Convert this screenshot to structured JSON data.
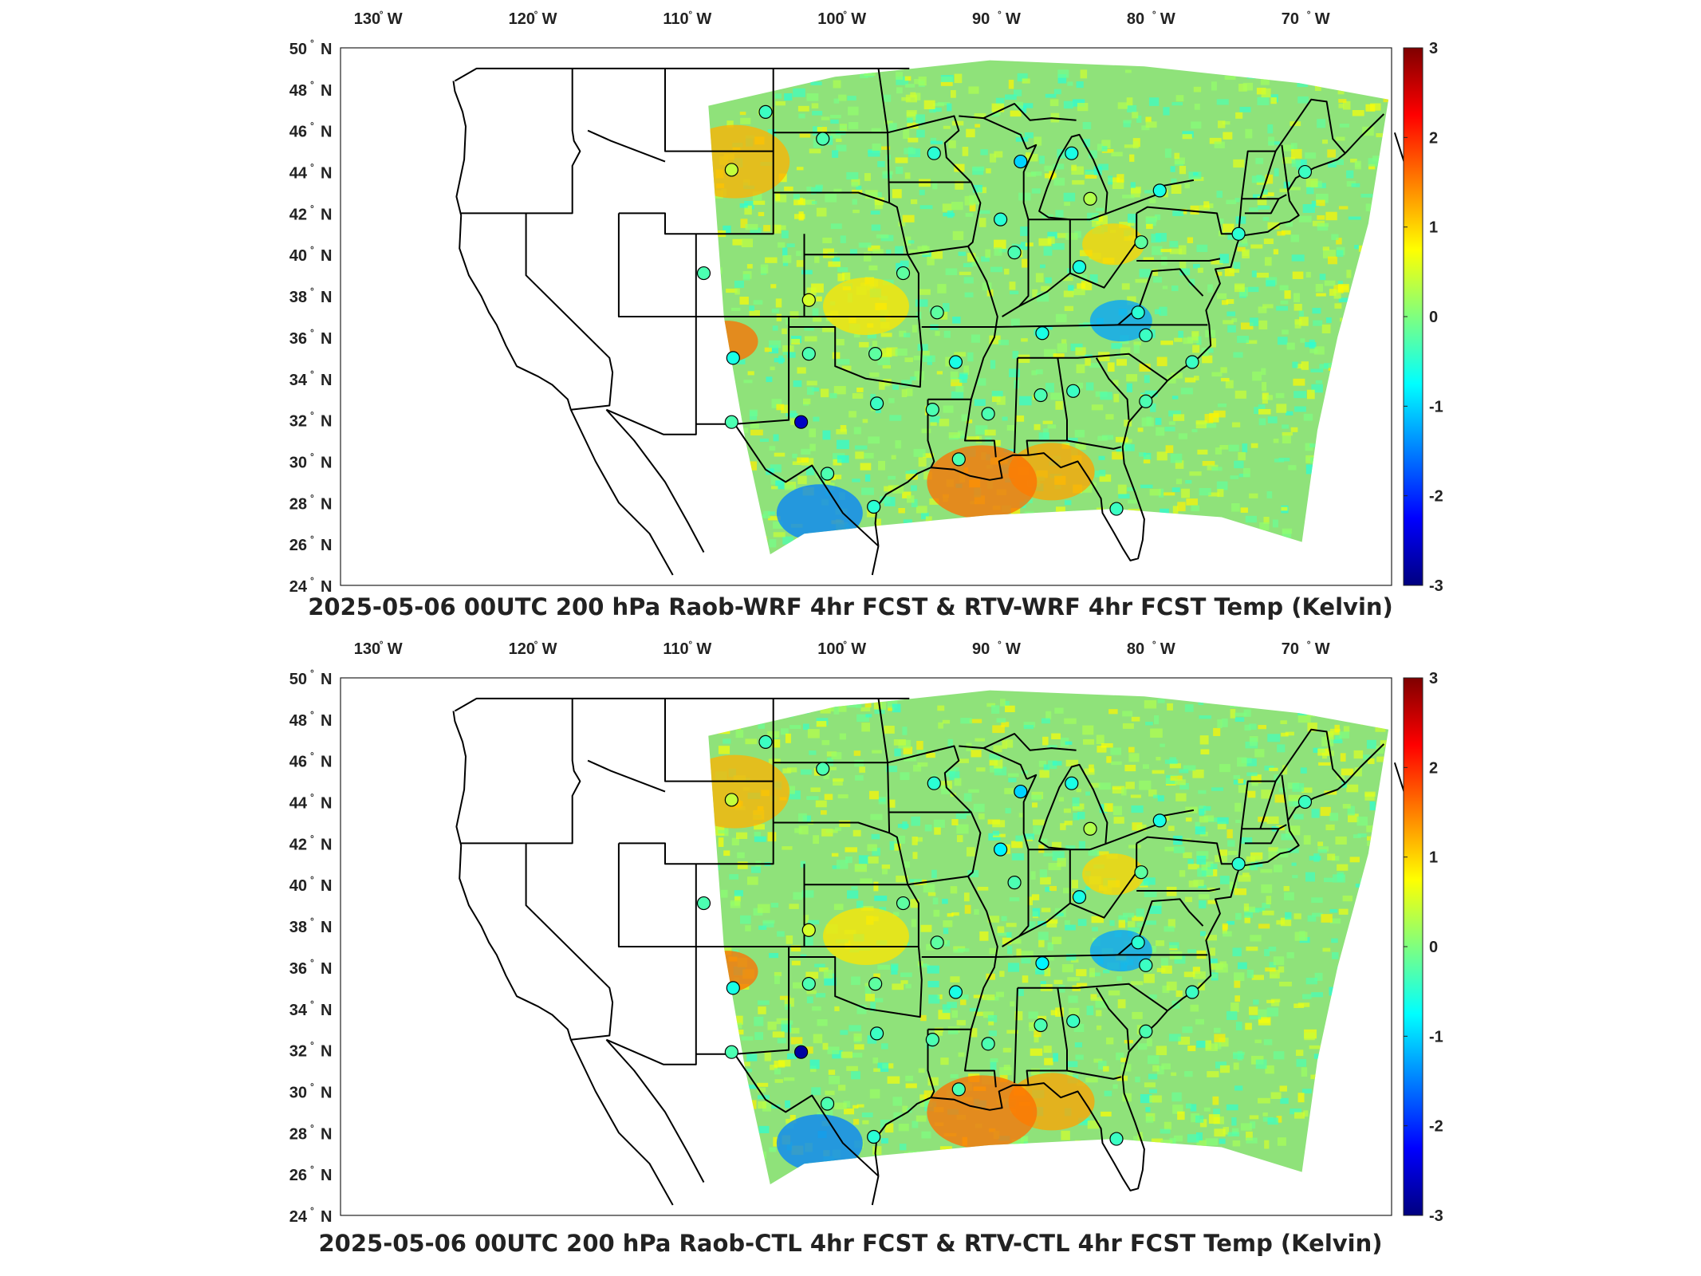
{
  "panels": [
    {
      "title": "2025-05-06 00UTC 200 hPa Raob-WRF 4hr FCST & RTV-WRF 4hr FCST Temp (Kelvin)",
      "stations": [
        {
          "lon": -104.5,
          "lat": 46.9,
          "value": -0.4
        },
        {
          "lon": -100.8,
          "lat": 45.6,
          "value": -0.3
        },
        {
          "lon": -93.6,
          "lat": 44.9,
          "value": -0.5
        },
        {
          "lon": -88.0,
          "lat": 44.5,
          "value": -1.0
        },
        {
          "lon": -84.7,
          "lat": 44.9,
          "value": -0.6
        },
        {
          "lon": -106.7,
          "lat": 44.1,
          "value": 0.4
        },
        {
          "lon": -83.5,
          "lat": 42.7,
          "value": 0.3
        },
        {
          "lon": -79.0,
          "lat": 43.1,
          "value": -0.6
        },
        {
          "lon": -69.6,
          "lat": 44.0,
          "value": -0.4
        },
        {
          "lon": -89.3,
          "lat": 41.7,
          "value": -0.5
        },
        {
          "lon": -73.9,
          "lat": 41.0,
          "value": -0.5
        },
        {
          "lon": -80.2,
          "lat": 40.6,
          "value": -0.2
        },
        {
          "lon": -88.4,
          "lat": 40.1,
          "value": -0.3
        },
        {
          "lon": -84.2,
          "lat": 39.4,
          "value": -0.6
        },
        {
          "lon": -95.6,
          "lat": 39.1,
          "value": -0.2
        },
        {
          "lon": -101.7,
          "lat": 37.8,
          "value": 0.5
        },
        {
          "lon": -108.5,
          "lat": 39.1,
          "value": -0.3
        },
        {
          "lon": -93.4,
          "lat": 37.2,
          "value": -0.2
        },
        {
          "lon": -80.4,
          "lat": 37.2,
          "value": -0.5
        },
        {
          "lon": -86.6,
          "lat": 36.2,
          "value": -0.6
        },
        {
          "lon": -79.9,
          "lat": 36.1,
          "value": -0.4
        },
        {
          "lon": -106.6,
          "lat": 35.0,
          "value": -0.6
        },
        {
          "lon": -101.7,
          "lat": 35.2,
          "value": -0.3
        },
        {
          "lon": -97.4,
          "lat": 35.2,
          "value": -0.2
        },
        {
          "lon": -92.2,
          "lat": 34.8,
          "value": -0.6
        },
        {
          "lon": -76.9,
          "lat": 34.8,
          "value": -0.4
        },
        {
          "lon": -84.6,
          "lat": 33.4,
          "value": -0.4
        },
        {
          "lon": -86.7,
          "lat": 33.2,
          "value": -0.3
        },
        {
          "lon": -97.3,
          "lat": 32.8,
          "value": -0.4
        },
        {
          "lon": -90.1,
          "lat": 32.3,
          "value": -0.3
        },
        {
          "lon": -93.7,
          "lat": 32.5,
          "value": -0.3
        },
        {
          "lon": -79.9,
          "lat": 32.9,
          "value": -0.3
        },
        {
          "lon": -106.7,
          "lat": 31.9,
          "value": -0.3
        },
        {
          "lon": -102.2,
          "lat": 31.9,
          "value": -2.6
        },
        {
          "lon": -100.5,
          "lat": 29.4,
          "value": -0.3
        },
        {
          "lon": -92.0,
          "lat": 30.1,
          "value": -0.3
        },
        {
          "lon": -97.5,
          "lat": 27.8,
          "value": -0.5
        },
        {
          "lon": -81.8,
          "lat": 27.7,
          "value": -0.4
        }
      ]
    },
    {
      "title": "2025-05-06 00UTC 200 hPa Raob-CTL 4hr FCST & RTV-CTL 4hr FCST Temp (Kelvin)",
      "stations": [
        {
          "lon": -104.5,
          "lat": 46.9,
          "value": -0.4
        },
        {
          "lon": -100.8,
          "lat": 45.6,
          "value": -0.3
        },
        {
          "lon": -93.6,
          "lat": 44.9,
          "value": -0.5
        },
        {
          "lon": -88.0,
          "lat": 44.5,
          "value": -1.0
        },
        {
          "lon": -84.7,
          "lat": 44.9,
          "value": -0.6
        },
        {
          "lon": -106.7,
          "lat": 44.1,
          "value": 0.4
        },
        {
          "lon": -83.5,
          "lat": 42.7,
          "value": 0.3
        },
        {
          "lon": -79.0,
          "lat": 43.1,
          "value": -0.6
        },
        {
          "lon": -69.6,
          "lat": 44.0,
          "value": -0.4
        },
        {
          "lon": -89.3,
          "lat": 41.7,
          "value": -0.8
        },
        {
          "lon": -73.9,
          "lat": 41.0,
          "value": -0.5
        },
        {
          "lon": -80.2,
          "lat": 40.6,
          "value": -0.2
        },
        {
          "lon": -88.4,
          "lat": 40.1,
          "value": -0.3
        },
        {
          "lon": -84.2,
          "lat": 39.4,
          "value": -0.6
        },
        {
          "lon": -95.6,
          "lat": 39.1,
          "value": -0.2
        },
        {
          "lon": -101.7,
          "lat": 37.8,
          "value": 0.5
        },
        {
          "lon": -108.5,
          "lat": 39.1,
          "value": -0.3
        },
        {
          "lon": -93.4,
          "lat": 37.2,
          "value": -0.2
        },
        {
          "lon": -80.4,
          "lat": 37.2,
          "value": -0.5
        },
        {
          "lon": -86.6,
          "lat": 36.2,
          "value": -0.8
        },
        {
          "lon": -79.9,
          "lat": 36.1,
          "value": -0.4
        },
        {
          "lon": -106.6,
          "lat": 35.0,
          "value": -0.6
        },
        {
          "lon": -101.7,
          "lat": 35.2,
          "value": -0.3
        },
        {
          "lon": -97.4,
          "lat": 35.2,
          "value": -0.2
        },
        {
          "lon": -92.2,
          "lat": 34.8,
          "value": -0.6
        },
        {
          "lon": -76.9,
          "lat": 34.8,
          "value": -0.4
        },
        {
          "lon": -84.6,
          "lat": 33.4,
          "value": -0.4
        },
        {
          "lon": -86.7,
          "lat": 33.2,
          "value": -0.3
        },
        {
          "lon": -97.3,
          "lat": 32.8,
          "value": -0.4
        },
        {
          "lon": -90.1,
          "lat": 32.3,
          "value": -0.3
        },
        {
          "lon": -93.7,
          "lat": 32.5,
          "value": -0.3
        },
        {
          "lon": -79.9,
          "lat": 32.9,
          "value": -0.3
        },
        {
          "lon": -106.7,
          "lat": 31.9,
          "value": -0.3
        },
        {
          "lon": -102.2,
          "lat": 31.9,
          "value": -2.8
        },
        {
          "lon": -100.5,
          "lat": 29.4,
          "value": -0.3
        },
        {
          "lon": -92.0,
          "lat": 30.1,
          "value": -0.3
        },
        {
          "lon": -97.5,
          "lat": 27.8,
          "value": -0.5
        },
        {
          "lon": -81.8,
          "lat": 27.7,
          "value": -0.4
        }
      ]
    }
  ],
  "axes": {
    "lon_ticks": [
      {
        "value": -130,
        "label": "130",
        "dir": "W"
      },
      {
        "value": -120,
        "label": "120",
        "dir": "W"
      },
      {
        "value": -110,
        "label": "110",
        "dir": "W"
      },
      {
        "value": -100,
        "label": "100",
        "dir": "W"
      },
      {
        "value": -90,
        "label": "90",
        "dir": "W"
      },
      {
        "value": -80,
        "label": "80",
        "dir": "W"
      },
      {
        "value": -70,
        "label": "70",
        "dir": "W"
      }
    ],
    "lat_ticks": [
      {
        "value": 50,
        "label": "50",
        "dir": "N"
      },
      {
        "value": 48,
        "label": "48",
        "dir": "N"
      },
      {
        "value": 46,
        "label": "46",
        "dir": "N"
      },
      {
        "value": 44,
        "label": "44",
        "dir": "N"
      },
      {
        "value": 42,
        "label": "42",
        "dir": "N"
      },
      {
        "value": 40,
        "label": "40",
        "dir": "N"
      },
      {
        "value": 38,
        "label": "38",
        "dir": "N"
      },
      {
        "value": 36,
        "label": "36",
        "dir": "N"
      },
      {
        "value": 34,
        "label": "34",
        "dir": "N"
      },
      {
        "value": 32,
        "label": "32",
        "dir": "N"
      },
      {
        "value": 30,
        "label": "30",
        "dir": "N"
      },
      {
        "value": 28,
        "label": "28",
        "dir": "N"
      },
      {
        "value": 26,
        "label": "26",
        "dir": "N"
      },
      {
        "value": 24,
        "label": "24",
        "dir": "N"
      }
    ],
    "lon_range": [
      -132,
      -64
    ],
    "lat_range": [
      24,
      50
    ]
  },
  "colorbar": {
    "range": [
      -3,
      3
    ],
    "ticks": [
      "3",
      "2",
      "1",
      "0",
      "-1",
      "-2",
      "-3"
    ],
    "colormap": "jet",
    "colors": [
      "#00007f",
      "#0000ff",
      "#007fff",
      "#00ffff",
      "#7fff7f",
      "#ffff00",
      "#ff7f00",
      "#ff0000",
      "#7f0000"
    ]
  },
  "map": {
    "domain_field_note_colors": {
      "dominant": "#7fe07f",
      "warm": "#ffd21f",
      "cool": "#2fa4ff"
    },
    "regions": [
      {
        "name": "nm-warm",
        "lon": -107.0,
        "lat": 35.8,
        "value": 1.6
      },
      {
        "name": "gulf-warm",
        "lon": -86.0,
        "lat": 29.5,
        "value": 1.3
      },
      {
        "name": "gulf-warm2",
        "lon": -90.5,
        "lat": 29.0,
        "value": 1.6
      },
      {
        "name": "tn-cool",
        "lon": -81.5,
        "lat": 36.8,
        "value": -1.3
      },
      {
        "name": "tx-cool",
        "lon": -101.0,
        "lat": 27.5,
        "value": -1.5
      },
      {
        "name": "wy-warm",
        "lon": -106.5,
        "lat": 44.5,
        "value": 1.2
      },
      {
        "name": "oh-warm",
        "lon": -82.0,
        "lat": 40.5,
        "value": 1.0
      },
      {
        "name": "ks-warm",
        "lon": -98.0,
        "lat": 37.5,
        "value": 0.9
      }
    ]
  }
}
